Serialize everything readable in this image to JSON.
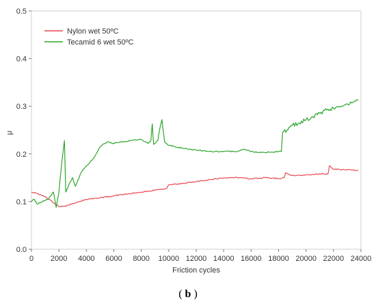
{
  "chart_data": {
    "type": "line",
    "title": "",
    "xlabel": "Friction cycles",
    "ylabel": "μ",
    "xlim": [
      0,
      24000
    ],
    "ylim": [
      0,
      0.5
    ],
    "x_ticks": [
      0,
      2000,
      4000,
      6000,
      8000,
      10000,
      12000,
      14000,
      16000,
      18000,
      20000,
      22000,
      24000
    ],
    "y_ticks": [
      "0.0",
      "0.1",
      "0.2",
      "0.3",
      "0.4",
      "0.5"
    ],
    "grid": false,
    "legend_position": "top-left",
    "series": [
      {
        "name": "Nylon wet 50ºC",
        "color": "#e8474f",
        "points": [
          [
            0,
            0.12
          ],
          [
            500,
            0.116
          ],
          [
            1000,
            0.11
          ],
          [
            1500,
            0.1
          ],
          [
            2000,
            0.09
          ],
          [
            2500,
            0.09
          ],
          [
            3000,
            0.096
          ],
          [
            3500,
            0.1
          ],
          [
            4000,
            0.104
          ],
          [
            5000,
            0.108
          ],
          [
            6000,
            0.112
          ],
          [
            7000,
            0.116
          ],
          [
            8000,
            0.12
          ],
          [
            9000,
            0.124
          ],
          [
            9800,
            0.127
          ],
          [
            10000,
            0.135
          ],
          [
            11000,
            0.138
          ],
          [
            12000,
            0.142
          ],
          [
            13000,
            0.146
          ],
          [
            14000,
            0.15
          ],
          [
            15000,
            0.15
          ],
          [
            16000,
            0.148
          ],
          [
            17000,
            0.15
          ],
          [
            18000,
            0.148
          ],
          [
            18400,
            0.15
          ],
          [
            18500,
            0.16
          ],
          [
            19000,
            0.155
          ],
          [
            20000,
            0.156
          ],
          [
            21000,
            0.158
          ],
          [
            21600,
            0.158
          ],
          [
            21700,
            0.175
          ],
          [
            22000,
            0.168
          ],
          [
            23000,
            0.167
          ],
          [
            23800,
            0.165
          ]
        ]
      },
      {
        "name": "Tecamid 6 wet 50ºC",
        "color": "#2aa52a",
        "points": [
          [
            0,
            0.1
          ],
          [
            200,
            0.105
          ],
          [
            400,
            0.095
          ],
          [
            800,
            0.1
          ],
          [
            1200,
            0.105
          ],
          [
            1600,
            0.12
          ],
          [
            1800,
            0.088
          ],
          [
            2000,
            0.12
          ],
          [
            2200,
            0.18
          ],
          [
            2400,
            0.228
          ],
          [
            2500,
            0.12
          ],
          [
            2800,
            0.14
          ],
          [
            3000,
            0.15
          ],
          [
            3200,
            0.132
          ],
          [
            3600,
            0.16
          ],
          [
            4000,
            0.175
          ],
          [
            4500,
            0.19
          ],
          [
            5000,
            0.215
          ],
          [
            5500,
            0.225
          ],
          [
            6000,
            0.222
          ],
          [
            6500,
            0.225
          ],
          [
            7000,
            0.226
          ],
          [
            7500,
            0.23
          ],
          [
            8000,
            0.23
          ],
          [
            8500,
            0.222
          ],
          [
            8700,
            0.228
          ],
          [
            8800,
            0.263
          ],
          [
            8900,
            0.22
          ],
          [
            9200,
            0.228
          ],
          [
            9400,
            0.26
          ],
          [
            9500,
            0.272
          ],
          [
            9700,
            0.225
          ],
          [
            10000,
            0.218
          ],
          [
            11000,
            0.212
          ],
          [
            12000,
            0.208
          ],
          [
            13000,
            0.205
          ],
          [
            14000,
            0.205
          ],
          [
            15000,
            0.205
          ],
          [
            15500,
            0.21
          ],
          [
            16000,
            0.205
          ],
          [
            17000,
            0.203
          ],
          [
            18000,
            0.205
          ],
          [
            18200,
            0.205
          ],
          [
            18300,
            0.245
          ],
          [
            18600,
            0.25
          ],
          [
            19000,
            0.26
          ],
          [
            19500,
            0.265
          ],
          [
            20000,
            0.272
          ],
          [
            20500,
            0.278
          ],
          [
            21000,
            0.285
          ],
          [
            21500,
            0.292
          ],
          [
            22000,
            0.296
          ],
          [
            22500,
            0.3
          ],
          [
            23000,
            0.305
          ],
          [
            23500,
            0.31
          ],
          [
            23800,
            0.312
          ]
        ]
      }
    ]
  },
  "caption": {
    "open": "(",
    "letter": "b",
    "close": ")"
  }
}
